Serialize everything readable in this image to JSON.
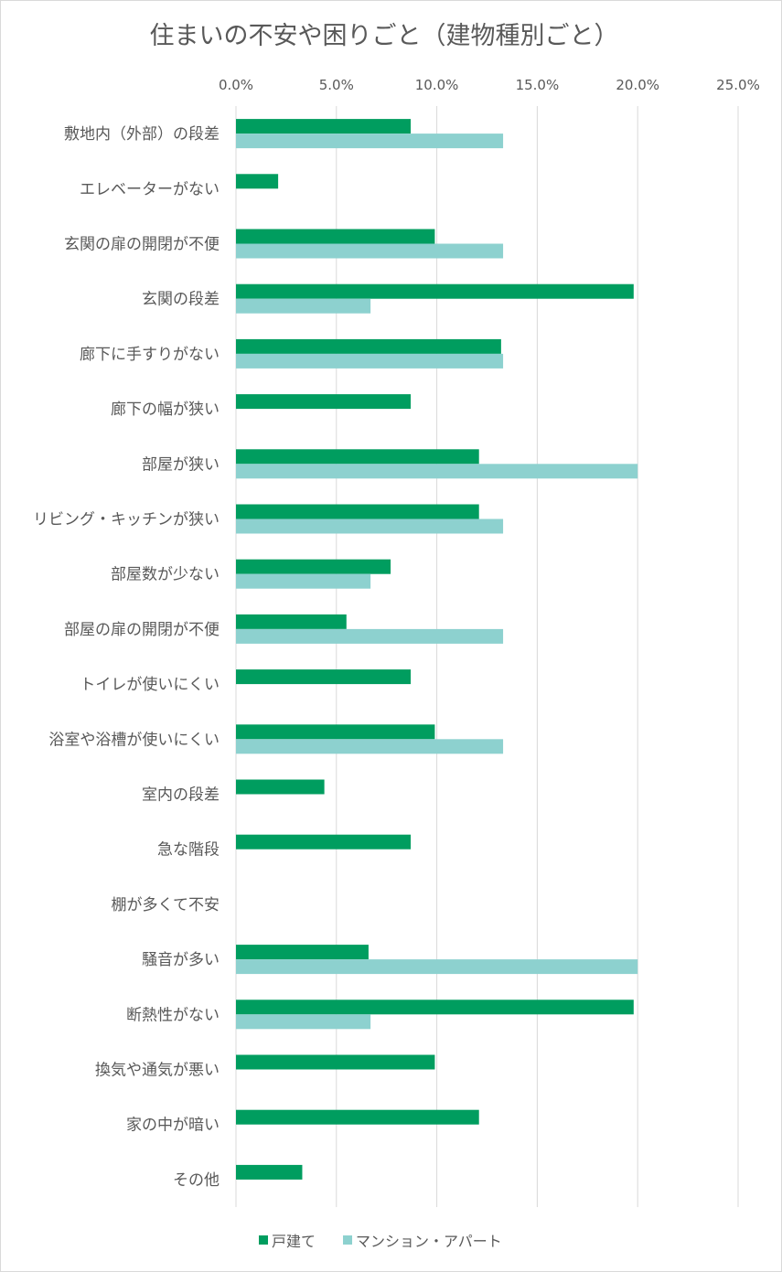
{
  "chart_data": {
    "type": "bar",
    "orientation": "horizontal",
    "title": "住まいの不安や困りごと（建物種別ごと）",
    "xlim": [
      0,
      25
    ],
    "tick_labels": [
      "0.0%",
      "5.0%",
      "10.0%",
      "15.0%",
      "20.0%",
      "25.0%"
    ],
    "grid": true,
    "legend_position": "bottom",
    "categories": [
      "敷地内（外部）の段差",
      "エレベーターがない",
      "玄関の扉の開閉が不便",
      "玄関の段差",
      "廊下に手すりがない",
      "廊下の幅が狭い",
      "部屋が狭い",
      "リビング・キッチンが狭い",
      "部屋数が少ない",
      "部屋の扉の開閉が不便",
      "トイレが使いにくい",
      "浴室や浴槽が使いにくい",
      "室内の段差",
      "急な階段",
      "棚が多くて不安",
      "騒音が多い",
      "断熱性がない",
      "換気や通気が悪い",
      "家の中が暗い",
      "その他"
    ],
    "series": [
      {
        "name": "戸建て",
        "color": "#009d5f",
        "values": [
          8.7,
          2.1,
          9.9,
          19.8,
          13.2,
          8.7,
          12.1,
          12.1,
          7.7,
          5.5,
          8.7,
          9.9,
          4.4,
          8.7,
          0,
          6.6,
          19.8,
          9.9,
          12.1,
          3.3
        ]
      },
      {
        "name": "マンション・アパート",
        "color": "#8dd1cf",
        "values": [
          13.3,
          0,
          13.3,
          6.7,
          13.3,
          0,
          20.0,
          13.3,
          6.7,
          13.3,
          0,
          13.3,
          0,
          0,
          0,
          20.0,
          6.7,
          0,
          0,
          0
        ]
      }
    ]
  }
}
